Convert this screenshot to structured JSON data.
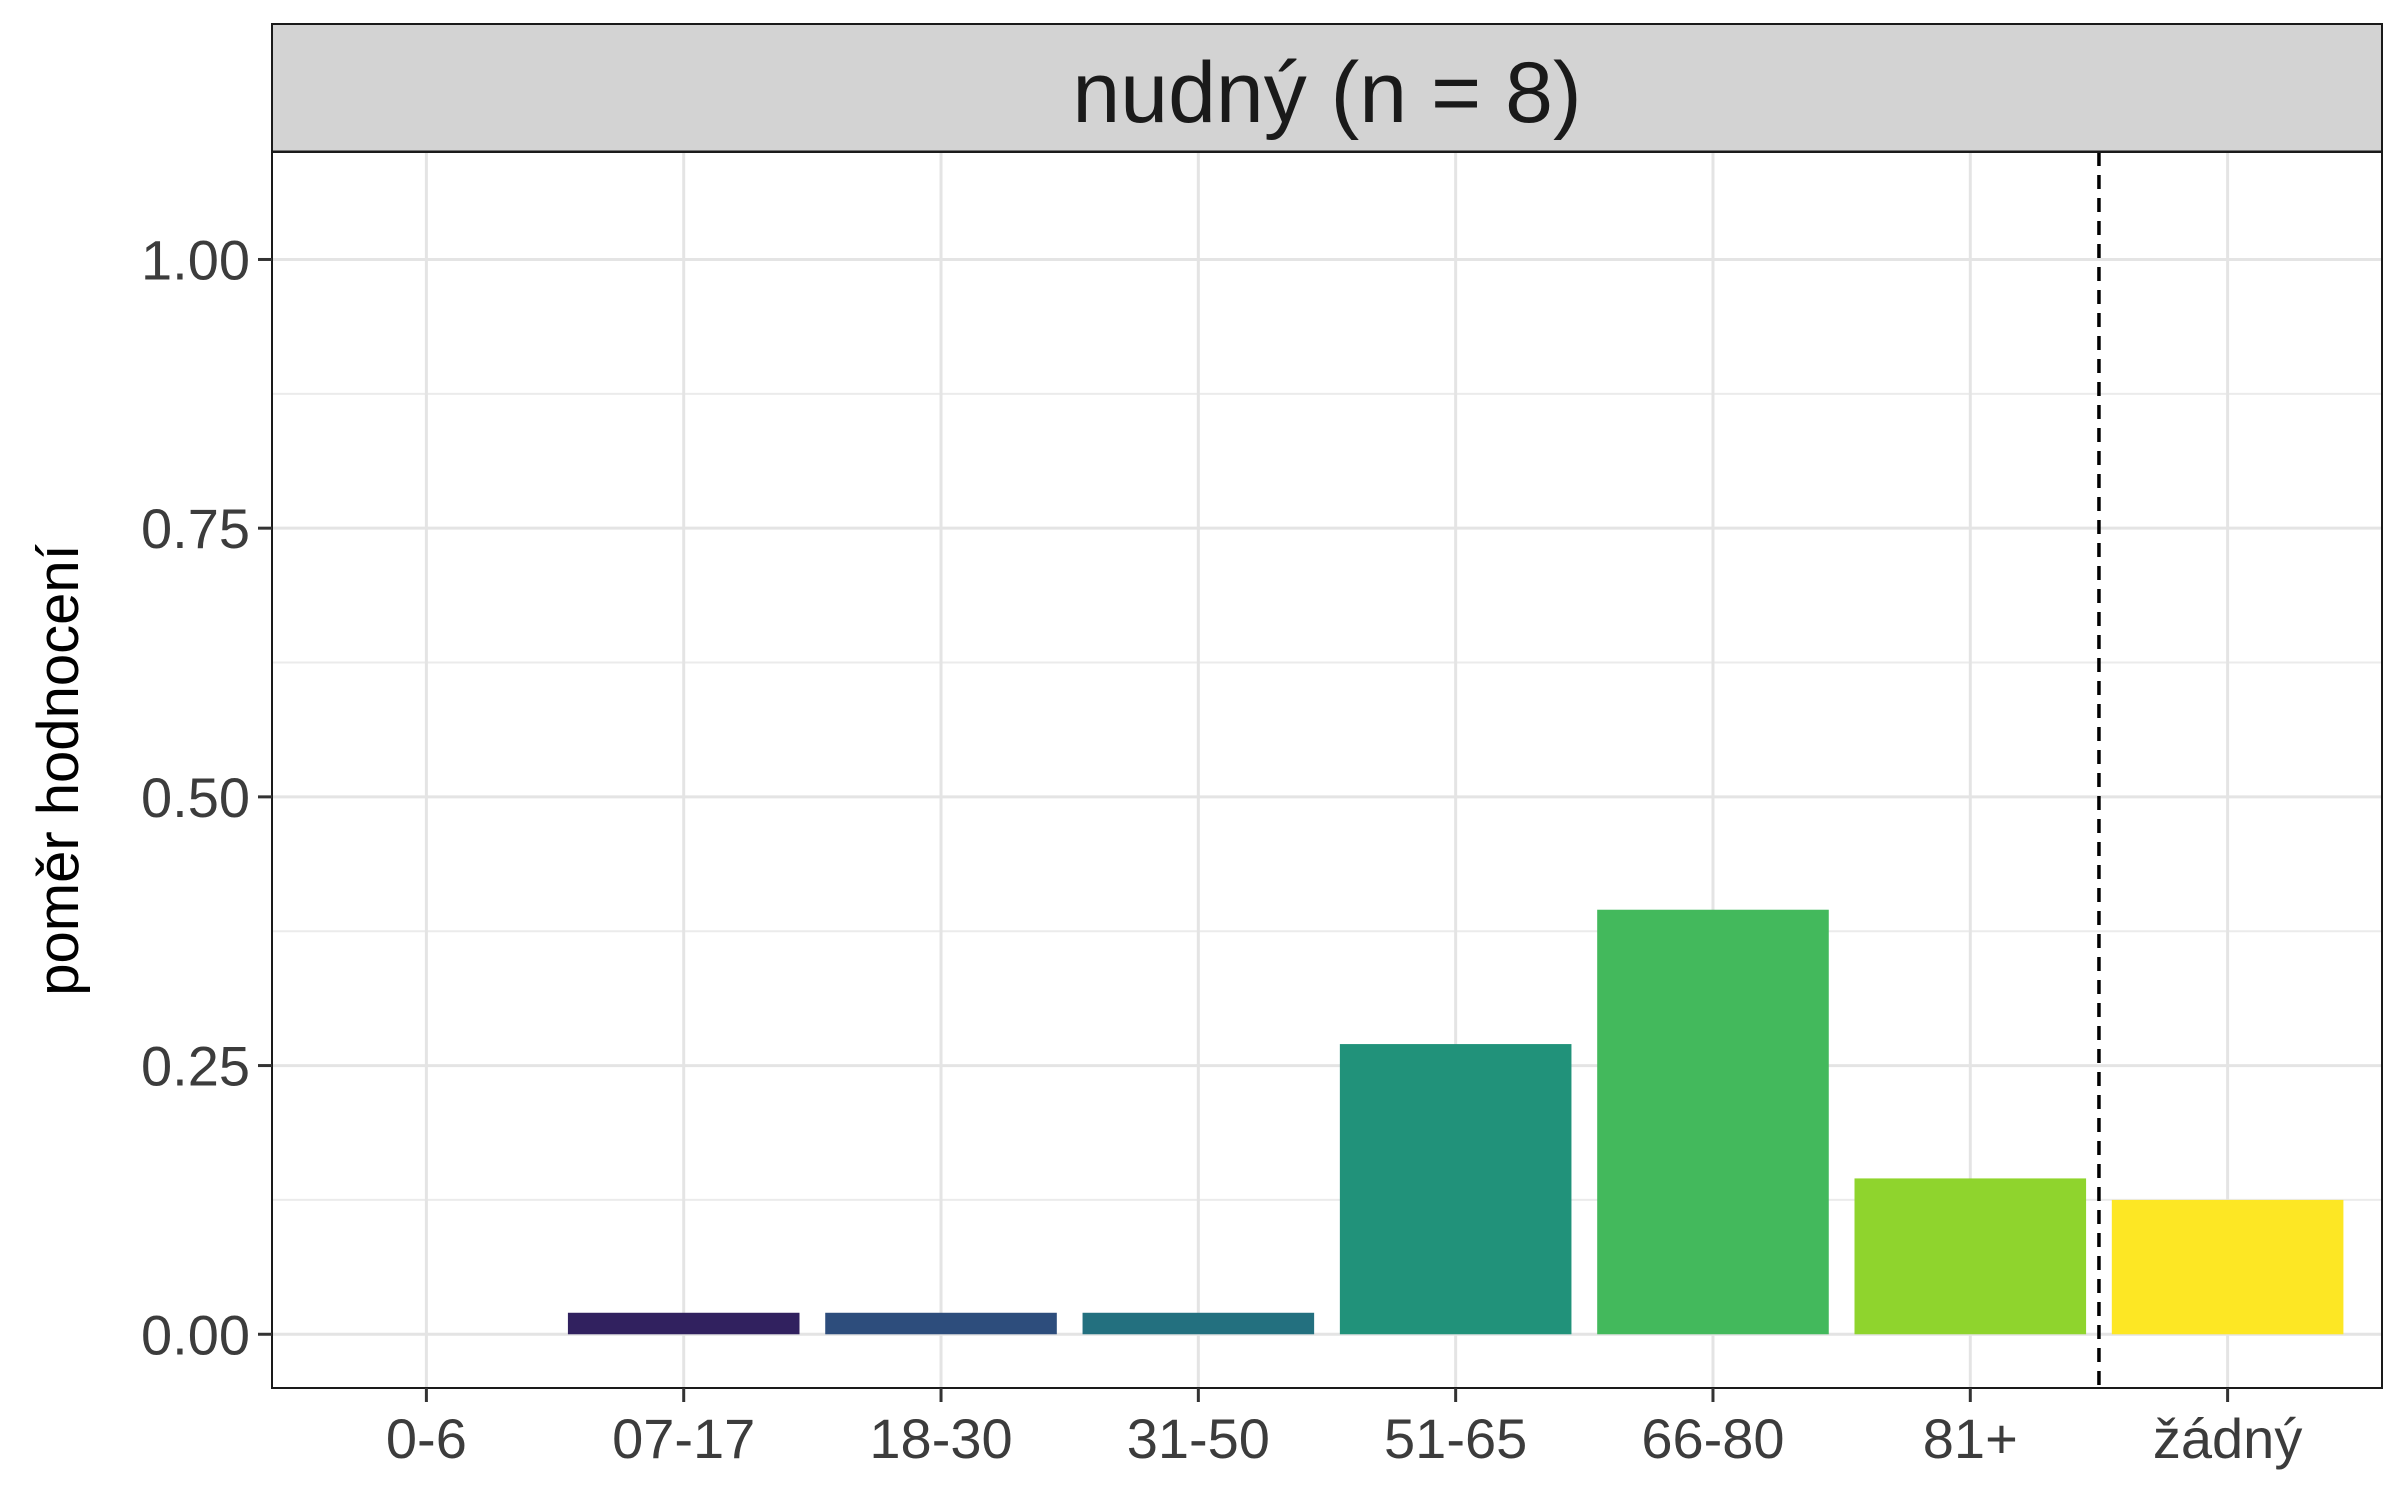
{
  "chart_data": {
    "type": "bar",
    "facet_title": "nudný (n = 8)",
    "xlabel": "",
    "ylabel": "poměr hodnocení",
    "categories": [
      "0-6",
      "07-17",
      "18-30",
      "31-50",
      "51-65",
      "66-80",
      "81+",
      "žádný"
    ],
    "values": [
      0.0,
      0.02,
      0.02,
      0.02,
      0.27,
      0.395,
      0.145,
      0.125
    ],
    "colors": [
      "#440154",
      "#31215f",
      "#2d4d7c",
      "#23707f",
      "#21927a",
      "#43b95c",
      "#8fd42d",
      "#fde724"
    ],
    "ylim": [
      -0.05,
      1.1
    ],
    "yticks": [
      0.0,
      0.25,
      0.5,
      0.75,
      1.0
    ],
    "ytick_labels": [
      "0.00",
      "0.25",
      "0.50",
      "0.75",
      "1.00"
    ],
    "separator_after_category": "81+",
    "separator_style": "dashed",
    "grid": true,
    "legend": "none",
    "strip_color": "#d3d3d3"
  }
}
